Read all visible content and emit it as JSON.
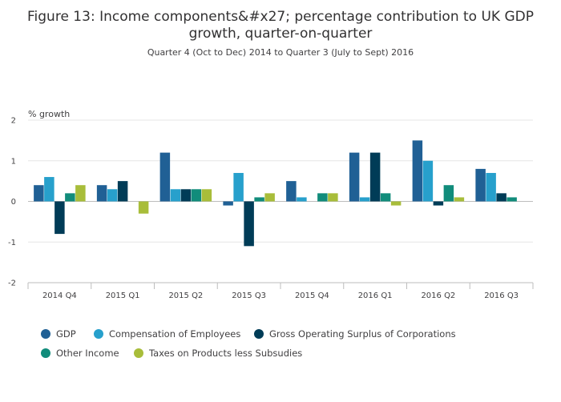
{
  "chart_data": {
    "type": "bar",
    "title": "Figure 13: Income components&#x27; percentage contribution to UK GDP growth, quarter-on-quarter",
    "title_lines": [
      "Figure 13: Income components&#x27; percentage contribution to UK GDP",
      "growth, quarter-on-quarter"
    ],
    "subtitle": "Quarter 4 (Oct to Dec) 2014 to Quarter 3 (July to Sept) 2016",
    "ylabel": "% growth",
    "xlabel": "",
    "ylim": [
      -2,
      2
    ],
    "yticks": [
      "2",
      "1",
      "0",
      "-1",
      "-2"
    ],
    "ytick_values": [
      2,
      1,
      0,
      -1,
      -2
    ],
    "grid": true,
    "legend_position": "bottom",
    "categories": [
      "2014 Q4",
      "2015 Q1",
      "2015 Q2",
      "2015 Q3",
      "2015 Q4",
      "2016 Q1",
      "2016 Q2",
      "2016 Q3"
    ],
    "series": [
      {
        "name": "GDP",
        "color": "#206095",
        "values": [
          0.4,
          0.4,
          1.2,
          -0.1,
          0.5,
          1.2,
          1.5,
          0.8
        ]
      },
      {
        "name": "Compensation of Employees",
        "color": "#27a0cc",
        "values": [
          0.6,
          0.3,
          0.3,
          0.7,
          0.1,
          0.1,
          1.0,
          0.7
        ]
      },
      {
        "name": "Gross Operating Surplus of Corporations",
        "color": "#003c57",
        "values": [
          -0.8,
          0.5,
          0.3,
          -1.1,
          0.0,
          1.2,
          -0.1,
          0.2
        ]
      },
      {
        "name": "Other Income",
        "color": "#118c7b",
        "values": [
          0.2,
          0.0,
          0.3,
          0.1,
          0.2,
          0.2,
          0.4,
          0.1
        ]
      },
      {
        "name": "Taxes on Products less Subsudies",
        "color": "#a8bd3a",
        "values": [
          0.4,
          -0.3,
          0.3,
          0.2,
          0.2,
          -0.1,
          0.1,
          0.0
        ]
      }
    ]
  }
}
